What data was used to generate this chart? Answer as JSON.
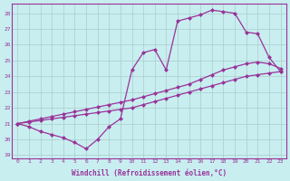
{
  "xlabel": "Windchill (Refroidissement éolien,°C)",
  "xlim": [
    -0.5,
    23.5
  ],
  "ylim": [
    18.8,
    28.6
  ],
  "xticks": [
    0,
    1,
    2,
    3,
    4,
    5,
    6,
    7,
    8,
    9,
    10,
    11,
    12,
    13,
    14,
    15,
    16,
    17,
    18,
    19,
    20,
    21,
    22,
    23
  ],
  "yticks": [
    19,
    20,
    21,
    22,
    23,
    24,
    25,
    26,
    27,
    28
  ],
  "background_color": "#c8eef0",
  "grid_color": "#aacccc",
  "line_color": "#993399",
  "line1_x": [
    0,
    1,
    2,
    3,
    4,
    5,
    6,
    7,
    8,
    9,
    10,
    11,
    12,
    13,
    14,
    15,
    16,
    17,
    18,
    19,
    20,
    21,
    22,
    23
  ],
  "line1_y": [
    21.0,
    21.1,
    21.2,
    21.3,
    21.4,
    21.5,
    21.6,
    21.7,
    21.8,
    21.9,
    22.0,
    22.2,
    22.4,
    22.6,
    22.8,
    23.0,
    23.2,
    23.4,
    23.6,
    23.8,
    24.0,
    24.1,
    24.2,
    24.3
  ],
  "line2_x": [
    0,
    1,
    2,
    3,
    4,
    5,
    6,
    7,
    8,
    9,
    10,
    11,
    12,
    13,
    14,
    15,
    16,
    17,
    18,
    19,
    20,
    21,
    22,
    23
  ],
  "line2_y": [
    21.0,
    21.15,
    21.3,
    21.45,
    21.6,
    21.75,
    21.9,
    22.05,
    22.2,
    22.35,
    22.5,
    22.7,
    22.9,
    23.1,
    23.3,
    23.5,
    23.8,
    24.1,
    24.4,
    24.6,
    24.8,
    24.9,
    24.8,
    24.5
  ],
  "line3_x": [
    0,
    1,
    2,
    3,
    4,
    5,
    6,
    7,
    8,
    9,
    10,
    11,
    12,
    13,
    14,
    15,
    16,
    17,
    18,
    19,
    20,
    21,
    22,
    23
  ],
  "line3_y": [
    21.0,
    20.8,
    20.5,
    20.3,
    20.1,
    19.8,
    19.4,
    20.0,
    20.8,
    21.3,
    24.4,
    25.5,
    25.7,
    24.4,
    27.5,
    27.7,
    27.9,
    28.2,
    28.1,
    28.0,
    26.8,
    26.7,
    25.2,
    24.3
  ],
  "marker_size": 2.5,
  "line_width": 0.9
}
